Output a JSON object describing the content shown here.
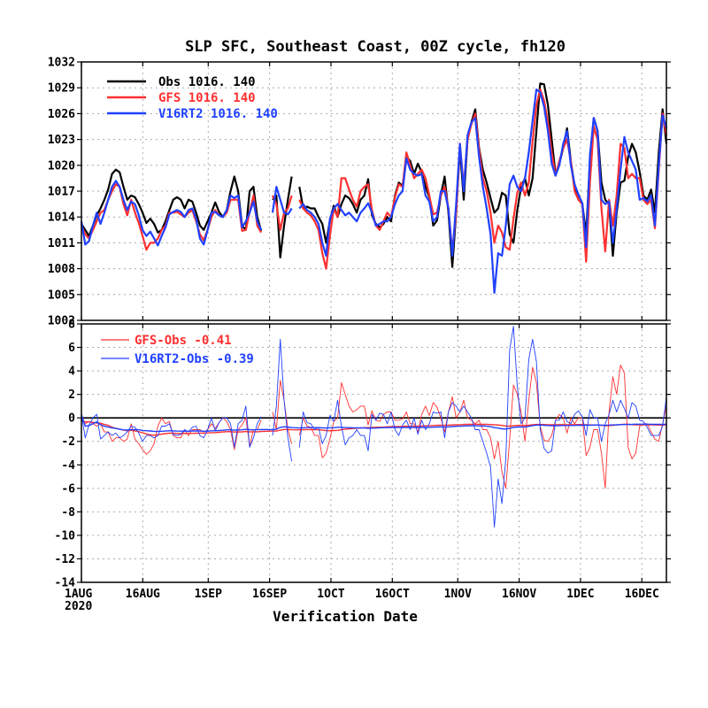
{
  "chart_data": [
    {
      "type": "line",
      "title": "SLP SFC, Southeast Coast, 00Z cycle, fh120",
      "xlabel": "Verification Date",
      "ylabel": "",
      "x_start": "2020-08-01",
      "x_end": "2020-12-22",
      "xlim": [
        "2020-08-01",
        "2020-12-22"
      ],
      "x_ticks": [
        {
          "label": "1AUG",
          "sub": "2020"
        },
        {
          "label": "16AUG",
          "sub": ""
        },
        {
          "label": "1SEP",
          "sub": ""
        },
        {
          "label": "16SEP",
          "sub": ""
        },
        {
          "label": "1OCT",
          "sub": ""
        },
        {
          "label": "16OCT",
          "sub": ""
        },
        {
          "label": "1NOV",
          "sub": ""
        },
        {
          "label": "16NOV",
          "sub": ""
        },
        {
          "label": "1DEC",
          "sub": ""
        },
        {
          "label": "16DEC",
          "sub": ""
        }
      ],
      "ylim": [
        1002,
        1032
      ],
      "y_ticks": [
        1002,
        1005,
        1008,
        1011,
        1014,
        1017,
        1020,
        1023,
        1026,
        1029,
        1032
      ],
      "grid": true,
      "legend_position": "top-left",
      "legend": [
        {
          "series": "Obs",
          "text": "Obs   1016.  140",
          "color": "#000000"
        },
        {
          "series": "GFS",
          "text": "GFS  1016.  140",
          "color": "#ff3030"
        },
        {
          "series": "V16RT2",
          "text": "V16RT2  1016.  140",
          "color": "#2040ff"
        }
      ],
      "series": [
        {
          "name": "Obs",
          "color": "#000000",
          "values": [
            1013.2,
            1012.5,
            1011.8,
            1013.0,
            1014.2,
            1015.0,
            1016.0,
            1017.2,
            1019.0,
            1019.5,
            1019.2,
            1017.5,
            1016.0,
            1016.5,
            1016.3,
            1015.5,
            1014.5,
            1013.3,
            1013.8,
            1013.2,
            1012.2,
            1012.5,
            1013.5,
            1014.8,
            1016.0,
            1016.3,
            1016.0,
            1015.0,
            1016.0,
            1015.8,
            1014.5,
            1013.0,
            1012.5,
            1013.5,
            1014.5,
            1015.7,
            1014.6,
            1014.0,
            1014.8,
            1017.0,
            1018.7,
            1017.0,
            1013.0,
            1012.5,
            1017.0,
            1017.5,
            1014.0,
            1012.4,
            null,
            null,
            1016.0,
            1016.5,
            1009.3,
            1013.0,
            1016.0,
            1018.7,
            null,
            1017.5,
            1015.0,
            1015.2,
            1015.0,
            1015.0,
            1014.0,
            1013.2,
            1011.0,
            1013.6,
            1015.3,
            1014.0,
            1015.5,
            1016.5,
            1016.2,
            1015.5,
            1014.5,
            1016.0,
            1016.5,
            1018.4,
            1014.2,
            1013.2,
            1012.8,
            1013.2,
            1014.0,
            1013.5,
            1016.5,
            1018.0,
            1017.6,
            1021.0,
            1020.5,
            1019.0,
            1020.2,
            1019.2,
            1017.5,
            1016.3,
            1013.0,
            1013.6,
            1016.5,
            1018.7,
            1014.5,
            1008.2,
            1014.5,
            1022.0,
            1016.0,
            1023.0,
            1025.0,
            1026.5,
            1022.0,
            1019.5,
            1018.0,
            1016.2,
            1014.5,
            1015.0,
            1016.8,
            1016.5,
            1012.0,
            1011.0,
            1014.8,
            1017.5,
            1018.5,
            1016.5,
            1018.5,
            1024.0,
            1029.5,
            1029.4,
            1027.0,
            1023.0,
            1019.0,
            1020.2,
            1022.0,
            1024.3,
            1020.5,
            1017.5,
            1016.0,
            1015.5,
            1012.0,
            1020.5,
            1025.5,
            1024.0,
            1018.0,
            1016.0,
            1015.5,
            1009.5,
            1014.5,
            1018.0,
            1018.2,
            1021.0,
            1022.5,
            1021.5,
            1019.2,
            1016.5,
            1016.0,
            1017.2,
            1014.5,
            1021.5,
            1026.5,
            1022.5
          ]
        },
        {
          "name": "GFS",
          "color": "#ff3030",
          "values": [
            1013.0,
            1012.0,
            1011.5,
            1012.5,
            1013.5,
            1014.5,
            1014.8,
            1016.0,
            1017.0,
            1017.8,
            1017.5,
            1015.5,
            1014.2,
            1016.0,
            1014.5,
            1013.3,
            1011.8,
            1010.2,
            1011.0,
            1011.0,
            1011.5,
            1012.5,
            1013.0,
            1014.5,
            1014.5,
            1014.6,
            1014.3,
            1014.0,
            1014.5,
            1014.8,
            1013.5,
            1012.0,
            1011.3,
            1012.5,
            1014.0,
            1014.8,
            1014.2,
            1014.0,
            1014.5,
            1016.0,
            1016.0,
            1016.0,
            1012.4,
            1012.5,
            1014.6,
            1016.5,
            1013.0,
            1012.2,
            null,
            null,
            1016.5,
            1015.5,
            1012.5,
            1014.5,
            1015.0,
            1016.5,
            null,
            1016.0,
            1015.0,
            1014.5,
            1014.2,
            1013.5,
            1012.5,
            1009.8,
            1008.0,
            1011.8,
            1015.0,
            1014.0,
            1018.5,
            1018.5,
            1017.2,
            1016.0,
            1015.2,
            1017.0,
            1017.5,
            1017.8,
            1014.8,
            1013.0,
            1012.5,
            1013.5,
            1014.5,
            1014.0,
            1016.3,
            1017.8,
            1017.5,
            1021.5,
            1020.0,
            1018.5,
            1019.0,
            1019.5,
            1018.5,
            1016.5,
            1014.3,
            1014.5,
            1016.5,
            1017.5,
            1015.0,
            1010.0,
            1014.5,
            1022.5,
            1017.5,
            1023.0,
            1024.8,
            1026.0,
            1021.8,
            1018.5,
            1017.0,
            1014.5,
            1011.0,
            1013.0,
            1012.2,
            1010.5,
            1010.2,
            1013.8,
            1016.8,
            1018.0,
            1016.5,
            1018.0,
            1022.8,
            1027.0,
            1028.8,
            1027.5,
            1025.0,
            1021.5,
            1018.8,
            1020.5,
            1022.0,
            1023.0,
            1020.5,
            1017.0,
            1016.0,
            1015.5,
            1008.8,
            1018.0,
            1024.5,
            1023.0,
            1015.0,
            1010.0,
            1016.0,
            1013.0,
            1016.5,
            1022.5,
            1022.0,
            1018.5,
            1019.0,
            1018.5,
            1018.5,
            1016.0,
            1015.5,
            1016.0,
            1012.7,
            1019.5,
            1026.0,
            1023.5
          ]
        },
        {
          "name": "V16RT2",
          "color": "#2040ff",
          "values": [
            1013.5,
            1010.8,
            1011.2,
            1013.0,
            1014.5,
            1013.2,
            1014.5,
            1016.0,
            1017.5,
            1018.2,
            1017.5,
            1016.0,
            1014.8,
            1015.8,
            1015.5,
            1014.2,
            1012.5,
            1011.8,
            1012.3,
            1011.5,
            1010.7,
            1011.8,
            1012.8,
            1014.3,
            1014.6,
            1014.8,
            1014.6,
            1014.0,
            1014.8,
            1015.0,
            1013.8,
            1011.5,
            1010.8,
            1012.5,
            1014.5,
            1014.6,
            1014.2,
            1014.0,
            1014.8,
            1016.5,
            1016.2,
            1016.5,
            1012.8,
            1013.5,
            1014.5,
            1015.8,
            1013.5,
            1012.5,
            null,
            null,
            1014.5,
            1017.5,
            1016.0,
            1014.5,
            1014.3,
            1015.0,
            null,
            1015.0,
            1015.5,
            1014.8,
            1014.5,
            1014.0,
            1013.2,
            1011.0,
            1009.5,
            1013.8,
            1015.0,
            1015.5,
            1014.8,
            1014.2,
            1014.5,
            1014.0,
            1013.5,
            1014.5,
            1015.0,
            1015.6,
            1014.5,
            1013.0,
            1013.2,
            1013.5,
            1013.5,
            1014.0,
            1015.5,
            1016.5,
            1017.0,
            1020.8,
            1019.5,
            1019.0,
            1018.8,
            1019.0,
            1016.5,
            1015.8,
            1013.5,
            1014.0,
            1017.0,
            1017.0,
            1015.0,
            1009.5,
            1015.5,
            1022.5,
            1017.0,
            1023.5,
            1025.0,
            1025.5,
            1021.0,
            1017.5,
            1015.0,
            1012.0,
            1005.2,
            1009.8,
            1009.5,
            1013.0,
            1017.8,
            1018.8,
            1017.5,
            1017.0,
            1018.5,
            1021.5,
            1025.2,
            1028.8,
            1028.5,
            1026.8,
            1024.0,
            1020.2,
            1018.8,
            1020.0,
            1022.5,
            1024.0,
            1020.0,
            1017.8,
            1016.6,
            1015.6,
            1010.5,
            1021.2,
            1025.5,
            1024.0,
            1016.0,
            1015.5,
            1015.8,
            1011.0,
            1015.0,
            1019.5,
            1023.3,
            1021.5,
            1020.5,
            1019.5,
            1016.0,
            1016.2,
            1015.8,
            1016.5,
            1013.0,
            1020.0,
            1025.8,
            1024.3
          ]
        }
      ]
    },
    {
      "type": "line",
      "title": "",
      "xlabel": "Verification Date",
      "ylabel": "",
      "x_start": "2020-08-01",
      "x_end": "2020-12-22",
      "xlim": [
        "2020-08-01",
        "2020-12-22"
      ],
      "ylim": [
        -14,
        8
      ],
      "y_ticks": [
        -14,
        -12,
        -10,
        -8,
        -6,
        -4,
        -2,
        0,
        2,
        4,
        6,
        8
      ],
      "grid": true,
      "legend_position": "top-left",
      "legend": [
        {
          "series": "GFS-Obs",
          "text": "GFS-Obs  -0.41",
          "color": "#ff3030"
        },
        {
          "series": "V16RT2-Obs",
          "text": "V16RT2-Obs  -0.39",
          "color": "#2040ff"
        }
      ],
      "reference_line": 0,
      "series": [
        {
          "name": "GFS-Obs",
          "color": "#ff3030",
          "values": [
            -0.2,
            -0.5,
            -0.3,
            -0.5,
            -0.7,
            -0.5,
            -1.2,
            -1.2,
            -2.0,
            -1.7,
            -1.7,
            -2.0,
            -1.8,
            -0.5,
            -1.8,
            -2.2,
            -2.7,
            -3.1,
            -2.8,
            -2.2,
            -0.7,
            0.0,
            -0.5,
            -0.3,
            -1.5,
            -1.7,
            -1.7,
            -1.0,
            -1.5,
            -1.0,
            -1.0,
            -1.0,
            -1.2,
            -1.0,
            -0.5,
            -0.9,
            -0.4,
            0.0,
            -0.3,
            -1.0,
            -2.7,
            -1.0,
            -0.6,
            0.0,
            -2.4,
            -1.0,
            -1.0,
            -0.2,
            null,
            null,
            0.5,
            -1.0,
            3.2,
            1.5,
            -1.0,
            -2.2,
            null,
            -1.5,
            0.0,
            -0.7,
            -0.8,
            -1.5,
            -1.5,
            -3.4,
            -3.0,
            -1.8,
            -0.3,
            0.0,
            3.0,
            2.0,
            1.0,
            0.5,
            0.7,
            1.0,
            1.0,
            -0.6,
            0.6,
            -0.2,
            -0.3,
            0.3,
            0.5,
            0.5,
            -0.2,
            -0.2,
            -0.1,
            0.5,
            -0.5,
            -0.5,
            -1.2,
            0.3,
            1.0,
            0.2,
            1.3,
            0.9,
            0.0,
            -1.2,
            0.5,
            1.8,
            0.0,
            0.5,
            1.5,
            0.0,
            -0.2,
            -0.5,
            -0.2,
            -1.0,
            -1.0,
            -1.7,
            -3.5,
            -2.0,
            -4.6,
            -6.0,
            -1.8,
            2.8,
            2.0,
            0.5,
            -2.0,
            1.5,
            4.3,
            3.0,
            -0.7,
            -1.9,
            -2.0,
            -1.5,
            -0.2,
            0.3,
            0.0,
            -1.3,
            0.0,
            -0.5,
            0.0,
            0.0,
            -3.2,
            -2.5,
            -1.0,
            -1.0,
            -3.0,
            -6.0,
            0.5,
            3.5,
            2.0,
            4.5,
            3.8,
            -2.5,
            -3.5,
            -3.0,
            -0.7,
            -0.5,
            -0.5,
            -1.2,
            -1.8,
            -2.0,
            -0.5,
            1.0
          ]
        },
        {
          "name": "V16RT2-Obs",
          "color": "#2040ff",
          "values": [
            0.3,
            -1.7,
            -0.6,
            0.0,
            0.3,
            -1.8,
            -1.5,
            -1.2,
            -1.5,
            -1.3,
            -1.7,
            -1.5,
            -1.2,
            -0.7,
            -0.8,
            -1.3,
            -2.0,
            -1.5,
            -1.5,
            -1.7,
            -1.5,
            -0.7,
            -0.7,
            -0.5,
            -1.4,
            -1.5,
            -1.4,
            -1.0,
            -1.2,
            -0.8,
            -0.7,
            -1.5,
            -1.7,
            -1.0,
            0.0,
            -1.1,
            -0.4,
            0.0,
            0.0,
            -0.5,
            -2.5,
            -0.5,
            -0.2,
            1.0,
            -2.5,
            -1.7,
            -0.5,
            0.1,
            null,
            null,
            -1.5,
            1.0,
            6.7,
            1.5,
            -1.7,
            -3.7,
            null,
            -2.5,
            0.5,
            -0.4,
            -0.5,
            -1.0,
            -0.8,
            -2.2,
            -1.5,
            0.2,
            -0.3,
            1.5,
            -0.7,
            -2.3,
            -1.7,
            -1.5,
            -1.0,
            -1.5,
            -1.5,
            -2.8,
            0.3,
            -0.2,
            0.4,
            0.3,
            -0.5,
            0.5,
            -1.0,
            -1.5,
            -0.6,
            -0.2,
            -1.0,
            0.0,
            -1.4,
            -0.2,
            -1.0,
            -0.5,
            0.5,
            0.4,
            0.5,
            -1.7,
            0.5,
            1.3,
            1.0,
            0.5,
            1.0,
            0.5,
            0.0,
            -1.0,
            -1.0,
            -2.0,
            -3.0,
            -4.2,
            -9.3,
            -5.2,
            -7.3,
            -3.5,
            5.8,
            7.8,
            2.7,
            -0.5,
            0.0,
            5.0,
            6.7,
            4.8,
            -1.0,
            -2.6,
            -3.0,
            -2.8,
            -0.2,
            -0.2,
            0.5,
            -0.3,
            -0.5,
            0.3,
            0.6,
            0.1,
            -1.5,
            0.7,
            0.0,
            0.0,
            -2.0,
            -0.5,
            0.3,
            1.5,
            0.5,
            1.5,
            0.8,
            0.0,
            1.3,
            1.0,
            -0.2,
            -0.3,
            -0.8,
            -1.5,
            -1.5,
            -1.5,
            -0.7,
            1.8
          ]
        }
      ]
    }
  ]
}
